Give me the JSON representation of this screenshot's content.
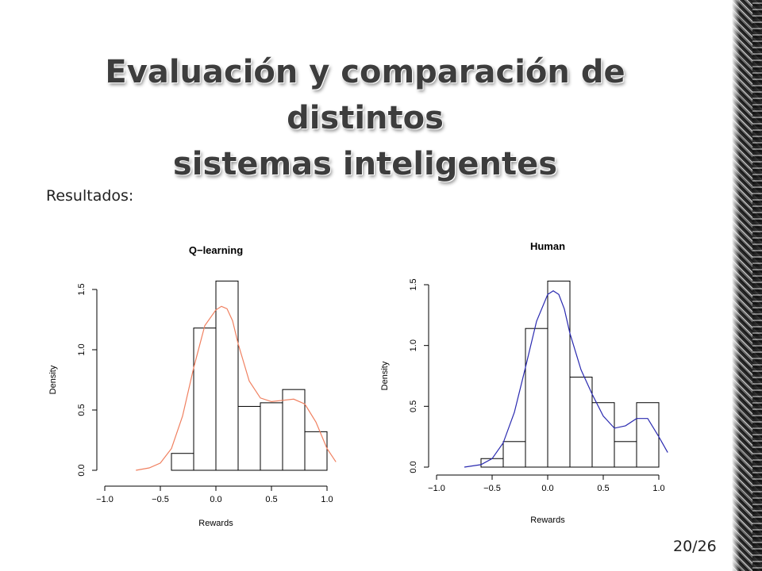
{
  "slide": {
    "title_line1": "Evaluación y comparación de distintos",
    "title_line2": "sistemas inteligentes",
    "subtitle": "Resultados:",
    "page_number": "20/26"
  },
  "chart_data": [
    {
      "type": "bar",
      "title": "Q−learning",
      "xlabel": "Rewards",
      "ylabel": "Density",
      "xlim": [
        -1.0,
        1.0
      ],
      "ylim": [
        0,
        1.5
      ],
      "xticks": [
        -1.0,
        -0.5,
        0.0,
        0.5,
        1.0
      ],
      "xtick_labels": [
        "−1.0",
        "−0.5",
        "0.0",
        "0.5",
        "1.0"
      ],
      "yticks": [
        0.0,
        0.5,
        1.0,
        1.5
      ],
      "ytick_labels": [
        "0.0",
        "0.5",
        "1.0",
        "1.5"
      ],
      "bin_edges": [
        -0.4,
        -0.2,
        0.0,
        0.2,
        0.4,
        0.6,
        0.8,
        1.0
      ],
      "values": [
        0.14,
        1.18,
        1.57,
        0.53,
        0.56,
        0.67,
        0.32
      ],
      "density_curve": {
        "color": "#f08060",
        "x": [
          -0.72,
          -0.6,
          -0.5,
          -0.4,
          -0.3,
          -0.2,
          -0.1,
          0.0,
          0.05,
          0.1,
          0.15,
          0.2,
          0.3,
          0.4,
          0.5,
          0.6,
          0.7,
          0.8,
          0.9,
          1.0,
          1.08
        ],
        "y": [
          0.0,
          0.02,
          0.06,
          0.18,
          0.45,
          0.85,
          1.2,
          1.33,
          1.36,
          1.34,
          1.24,
          1.05,
          0.74,
          0.6,
          0.57,
          0.58,
          0.59,
          0.55,
          0.4,
          0.18,
          0.07
        ]
      }
    },
    {
      "type": "bar",
      "title": "Human",
      "xlabel": "Rewards",
      "ylabel": "Density",
      "xlim": [
        -1.0,
        1.0
      ],
      "ylim": [
        0,
        1.5
      ],
      "xticks": [
        -1.0,
        -0.5,
        0.0,
        0.5,
        1.0
      ],
      "xtick_labels": [
        "−1.0",
        "−0.5",
        "0.0",
        "0.5",
        "1.0"
      ],
      "yticks": [
        0.0,
        0.5,
        1.0,
        1.5
      ],
      "ytick_labels": [
        "0.0",
        "0.5",
        "1.0",
        "1.5"
      ],
      "bin_edges": [
        -0.6,
        -0.4,
        -0.2,
        0.0,
        0.2,
        0.4,
        0.6,
        0.8,
        1.0
      ],
      "values": [
        0.07,
        0.21,
        1.14,
        1.53,
        0.74,
        0.53,
        0.21,
        0.53
      ],
      "density_curve": {
        "color": "#2a2ab0",
        "x": [
          -0.75,
          -0.6,
          -0.5,
          -0.4,
          -0.3,
          -0.2,
          -0.1,
          0.0,
          0.05,
          0.1,
          0.15,
          0.2,
          0.3,
          0.4,
          0.5,
          0.6,
          0.7,
          0.8,
          0.9,
          1.0,
          1.08
        ],
        "y": [
          0.0,
          0.02,
          0.07,
          0.2,
          0.45,
          0.82,
          1.2,
          1.42,
          1.45,
          1.42,
          1.3,
          1.1,
          0.8,
          0.6,
          0.42,
          0.32,
          0.34,
          0.4,
          0.4,
          0.25,
          0.12
        ]
      }
    }
  ]
}
